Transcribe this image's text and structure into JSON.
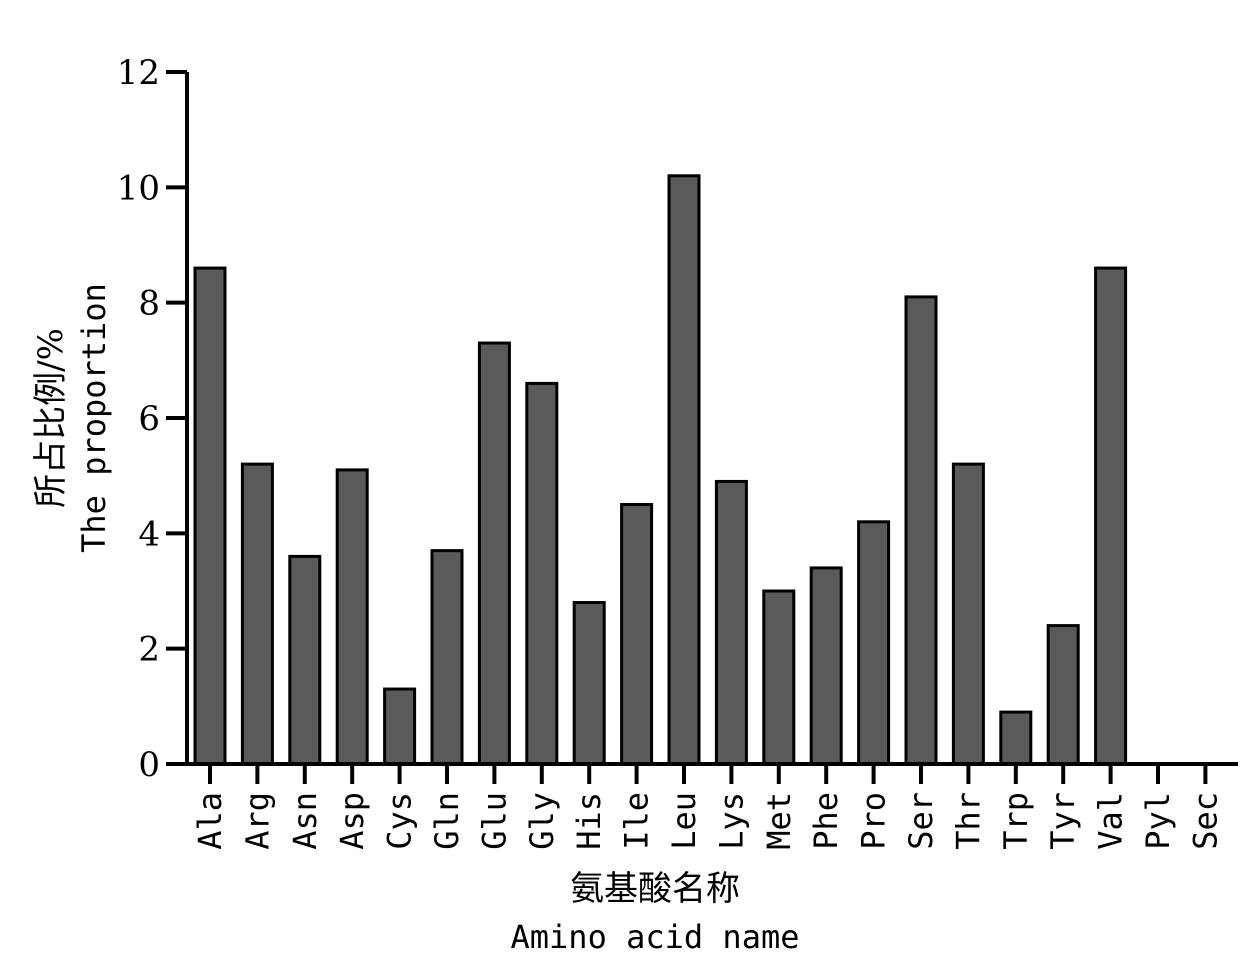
{
  "chart_data": {
    "type": "bar",
    "categories": [
      "Ala",
      "Arg",
      "Asn",
      "Asp",
      "Cys",
      "Gln",
      "Glu",
      "Gly",
      "His",
      "Ile",
      "Leu",
      "Lys",
      "Met",
      "Phe",
      "Pro",
      "Ser",
      "Thr",
      "Trp",
      "Tyr",
      "Val",
      "Pyl",
      "Sec"
    ],
    "values": [
      8.6,
      5.2,
      3.6,
      5.1,
      1.3,
      3.7,
      7.3,
      6.6,
      2.8,
      4.5,
      10.2,
      4.9,
      3.0,
      3.4,
      4.2,
      8.1,
      5.2,
      0.9,
      2.4,
      8.6,
      0,
      0
    ],
    "xlabel": [
      "氨基酸名称",
      "Amino acid name"
    ],
    "ylabel": [
      "所占比例/%",
      "The proportion"
    ],
    "ylim": [
      0,
      12
    ],
    "yticks": [
      "0",
      "2",
      "4",
      "6",
      "8",
      "10",
      "12"
    ],
    "grid": false,
    "bar_color": "#5a5a5a",
    "edge_color": "#000000"
  }
}
